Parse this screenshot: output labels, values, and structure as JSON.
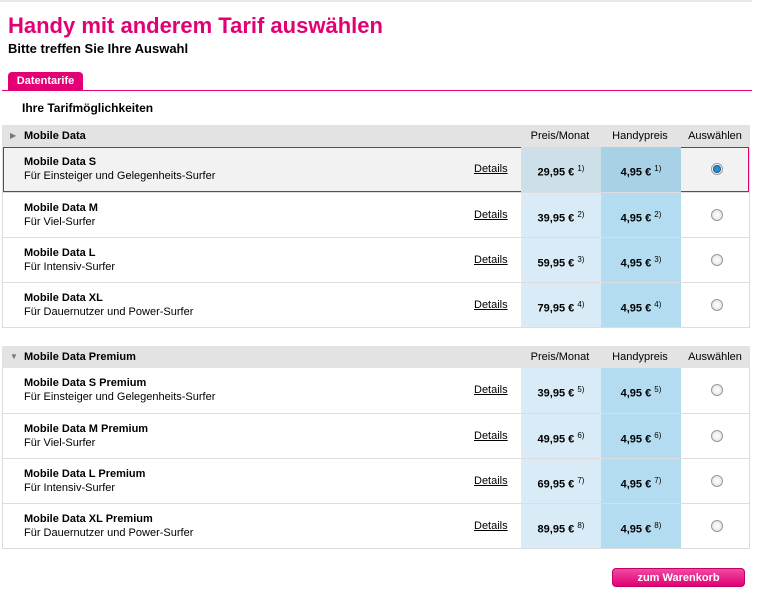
{
  "title": "Handy mit anderem Tarif auswählen",
  "subtitle": "Bitte treffen Sie Ihre Auswahl",
  "tab": "Datentarife",
  "section_title": "Ihre Tarifmöglichkeiten",
  "columns": {
    "price": "Preis/Monat",
    "handy": "Handypreis",
    "select": "Auswählen"
  },
  "details_label": "Details",
  "groups": [
    {
      "name": "Mobile Data",
      "expanded": false,
      "rows": [
        {
          "name": "Mobile Data S",
          "desc": "Für Einsteiger und Gelegenheits-Surfer",
          "price": "29,95 €",
          "price_note": "1)",
          "handy": "4,95 €",
          "handy_note": "1)",
          "selected": true
        },
        {
          "name": "Mobile Data M",
          "desc": "Für Viel-Surfer",
          "price": "39,95 €",
          "price_note": "2)",
          "handy": "4,95 €",
          "handy_note": "2)",
          "selected": false
        },
        {
          "name": "Mobile Data L",
          "desc": "Für Intensiv-Surfer",
          "price": "59,95 €",
          "price_note": "3)",
          "handy": "4,95 €",
          "handy_note": "3)",
          "selected": false
        },
        {
          "name": "Mobile Data XL",
          "desc": "Für Dauernutzer und Power-Surfer",
          "price": "79,95 €",
          "price_note": "4)",
          "handy": "4,95 €",
          "handy_note": "4)",
          "selected": false
        }
      ]
    },
    {
      "name": "Mobile Data Premium",
      "expanded": true,
      "rows": [
        {
          "name": "Mobile Data S Premium",
          "desc": "Für Einsteiger und Gelegenheits-Surfer",
          "price": "39,95 €",
          "price_note": "5)",
          "handy": "4,95 €",
          "handy_note": "5)",
          "selected": false
        },
        {
          "name": "Mobile Data M Premium",
          "desc": "Für Viel-Surfer",
          "price": "49,95 €",
          "price_note": "6)",
          "handy": "4,95 €",
          "handy_note": "6)",
          "selected": false
        },
        {
          "name": "Mobile Data L Premium",
          "desc": "Für Intensiv-Surfer",
          "price": "69,95 €",
          "price_note": "7)",
          "handy": "4,95 €",
          "handy_note": "7)",
          "selected": false
        },
        {
          "name": "Mobile Data XL Premium",
          "desc": "Für Dauernutzer und Power-Surfer",
          "price": "89,95 €",
          "price_note": "8)",
          "handy": "4,95 €",
          "handy_note": "8)",
          "selected": false
        }
      ]
    }
  ],
  "cart_button": "zum Warenkorb",
  "colors": {
    "brand": "#e20074"
  }
}
